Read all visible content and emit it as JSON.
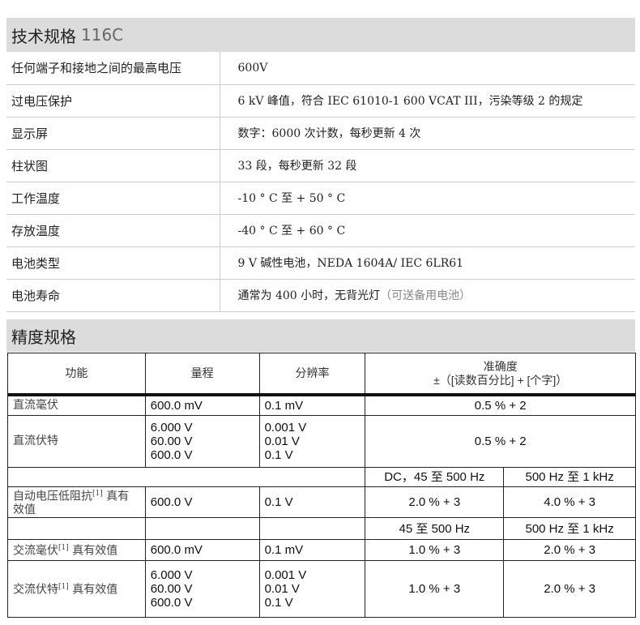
{
  "tech": {
    "title": "技术规格",
    "model": "116C",
    "rows": [
      {
        "k": "任何端子和接地之间的最高电压",
        "v": "600V"
      },
      {
        "k": "过电压保护",
        "v": "6 kV 峰值，符合 IEC 61010-1 600 VCAT III，污染等级 2 的规定"
      },
      {
        "k": "显示屏",
        "v": "数字：6000 次计数，每秒更新 4 次"
      },
      {
        "k": "柱状图",
        "v": "33 段，每秒更新 32 段"
      },
      {
        "k": "工作温度",
        "v": "-10 ° C 至 + 50 ° C"
      },
      {
        "k": "存放温度",
        "v": "-40 ° C 至 + 60 ° C"
      },
      {
        "k": "电池类型",
        "v": "9 V 碱性电池，NEDA 1604A/ IEC 6LR61"
      },
      {
        "k": "电池寿命",
        "v": "通常为 400 小时，无背光灯",
        "note": "（可送备用电池）"
      }
    ]
  },
  "accuracy": {
    "title": "精度规格",
    "headers": {
      "function": "功能",
      "range": "量程",
      "resolution": "分辨率",
      "accuracy": "准确度",
      "accuracy_sub": "±（[读数百分比] + [个字]）"
    },
    "rows": {
      "dcmv": {
        "f": "直流毫伏",
        "r": "600.0 mV",
        "res": "0.1 mV",
        "a": "0.5 % + 2"
      },
      "dcv": {
        "f": "直流伏特",
        "r": [
          "6.000 V",
          "60.00 V",
          "600.0 V"
        ],
        "res": [
          "0.001 V",
          "0.01 V",
          "0.1 V"
        ],
        "a": "0.5 % + 2"
      },
      "band1": {
        "a1": "DC，45 至 500 Hz",
        "a2": "500 Hz 至 1 kHz"
      },
      "autov": {
        "f": "自动电压低阻抗",
        "sup": "[1]",
        "f2": " 真有效值",
        "r": "600.0 V",
        "res": "0.1 V",
        "a1": "2.0 % + 3",
        "a2": "4.0 % + 3"
      },
      "band2": {
        "a1": "45 至 500 Hz",
        "a2": "500 Hz 至 1 kHz"
      },
      "acmv": {
        "f": "交流毫伏",
        "sup": "[1]",
        "f2": " 真有效值",
        "r": "600.0 mV",
        "res": "0.1 mV",
        "a1": "1.0 % + 3",
        "a2": "2.0 % + 3"
      },
      "acv": {
        "f": "交流伏特",
        "sup": "[1]",
        "f2": " 真有效值",
        "r": [
          "6.000 V",
          "60.00 V",
          "600.0 V"
        ],
        "res": [
          "0.001 V",
          "0.01 V",
          "0.1 V"
        ],
        "a1": "1.0 % + 3",
        "a2": "2.0 % + 3"
      }
    }
  }
}
